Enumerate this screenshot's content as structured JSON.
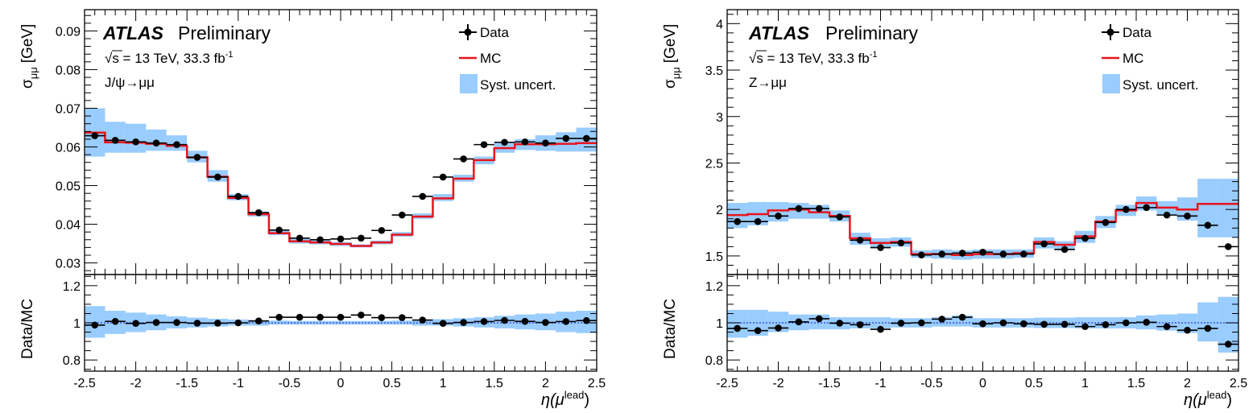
{
  "chart_data": [
    {
      "type": "line",
      "experiment": "ATLAS",
      "status": "Preliminary",
      "energy_text": "√s = 13 TeV, 33.3 fb",
      "lumi_sup": "-1",
      "process": "J/ψ→μμ",
      "ylabel": "σ",
      "ylabel_sub": "μμ",
      "ylabel_unit": "[GeV]",
      "ratio_ylabel": "Data/MC",
      "xlabel": "η(μ",
      "xlabel_sup": "lead",
      "xlabel_close": ")",
      "legend": {
        "data": "Data",
        "mc": "MC",
        "syst": "Syst. uncert."
      },
      "colors": {
        "mc": "#e8141c",
        "syst": "#99ccff",
        "data": "#000000"
      },
      "xlim": [
        -2.5,
        2.5
      ],
      "ylim": [
        0.027,
        0.0955
      ],
      "ratio_ylim": [
        0.74,
        1.26
      ],
      "x_ticks": [
        "-2.5",
        "-2",
        "-1.5",
        "-1",
        "-0.5",
        "0",
        "0.5",
        "1",
        "1.5",
        "2",
        "2.5"
      ],
      "y_ticks": [
        "0.03",
        "0.04",
        "0.05",
        "0.06",
        "0.07",
        "0.08",
        "0.09"
      ],
      "ratio_ticks": [
        "0.8",
        "1",
        "1.2"
      ],
      "bin_edges": [
        -2.5,
        -2.3,
        -2.1,
        -1.9,
        -1.7,
        -1.5,
        -1.3,
        -1.1,
        -0.9,
        -0.7,
        -0.5,
        -0.3,
        -0.1,
        0.1,
        0.3,
        0.5,
        0.7,
        0.9,
        1.1,
        1.3,
        1.5,
        1.7,
        1.9,
        2.1,
        2.3,
        2.5
      ],
      "series": [
        {
          "name": "Data",
          "values": [
            0.0629,
            0.0617,
            0.0613,
            0.061,
            0.0606,
            0.0573,
            0.0522,
            0.0472,
            0.043,
            0.0385,
            0.0364,
            0.036,
            0.0362,
            0.0364,
            0.0384,
            0.0424,
            0.0472,
            0.0522,
            0.0569,
            0.0606,
            0.0612,
            0.0613,
            0.061,
            0.0622,
            0.0622
          ]
        },
        {
          "name": "MC",
          "values": [
            0.0637,
            0.0612,
            0.0611,
            0.0608,
            0.0603,
            0.0573,
            0.0523,
            0.0468,
            0.0426,
            0.0377,
            0.0356,
            0.0353,
            0.0349,
            0.0344,
            0.0353,
            0.0373,
            0.042,
            0.0467,
            0.0518,
            0.0566,
            0.0597,
            0.0607,
            0.0607,
            0.0608,
            0.061
          ]
        }
      ],
      "syst_low": [
        0.0575,
        0.0585,
        0.0585,
        0.059,
        0.059,
        0.056,
        0.051,
        0.0462,
        0.042,
        0.0372,
        0.035,
        0.0348,
        0.0344,
        0.034,
        0.0348,
        0.0368,
        0.0414,
        0.046,
        0.051,
        0.0555,
        0.0585,
        0.0592,
        0.059,
        0.0588,
        0.0588
      ],
      "syst_high": [
        0.07,
        0.0665,
        0.066,
        0.0645,
        0.063,
        0.059,
        0.054,
        0.0478,
        0.0433,
        0.0383,
        0.0362,
        0.0358,
        0.0354,
        0.0348,
        0.0358,
        0.038,
        0.0428,
        0.0478,
        0.0528,
        0.0575,
        0.0612,
        0.062,
        0.063,
        0.0638,
        0.065
      ],
      "ratio_values": [
        0.988,
        1.008,
        0.997,
        1.002,
        1.002,
        0.998,
        0.998,
        1.0,
        1.01,
        1.03,
        1.03,
        1.03,
        1.03,
        1.042,
        1.028,
        1.028,
        1.015,
        0.997,
        1.002,
        1.007,
        1.013,
        1.008,
        1.002,
        1.007,
        1.012
      ],
      "ratio_syst_low": [
        0.92,
        0.94,
        0.95,
        0.96,
        0.97,
        0.975,
        0.98,
        0.985,
        0.985,
        0.99,
        0.99,
        0.99,
        0.99,
        0.99,
        0.99,
        0.99,
        0.985,
        0.985,
        0.98,
        0.975,
        0.97,
        0.965,
        0.96,
        0.95,
        0.945
      ],
      "ratio_syst_high": [
        1.09,
        1.065,
        1.055,
        1.045,
        1.035,
        1.028,
        1.022,
        1.018,
        1.015,
        1.012,
        1.01,
        1.01,
        1.01,
        1.01,
        1.01,
        1.012,
        1.015,
        1.02,
        1.025,
        1.03,
        1.038,
        1.045,
        1.05,
        1.06,
        1.065
      ]
    },
    {
      "type": "line",
      "experiment": "ATLAS",
      "status": "Preliminary",
      "energy_text": "√s = 13 TeV, 33.3 fb",
      "lumi_sup": "-1",
      "process": "Z→μμ",
      "ylabel": "σ",
      "ylabel_sub": "μμ",
      "ylabel_unit": "[GeV]",
      "ratio_ylabel": "Data/MC",
      "xlabel": "η(μ",
      "xlabel_sup": "lead",
      "xlabel_close": ")",
      "legend": {
        "data": "Data",
        "mc": "MC",
        "syst": "Syst. uncert."
      },
      "colors": {
        "mc": "#e8141c",
        "syst": "#99ccff",
        "data": "#000000"
      },
      "xlim": [
        -2.5,
        2.5
      ],
      "ylim": [
        1.3,
        4.15
      ],
      "ratio_ylim": [
        0.74,
        1.26
      ],
      "x_ticks": [
        "-2.5",
        "-2",
        "-1.5",
        "-1",
        "-0.5",
        "0",
        "0.5",
        "1",
        "1.5",
        "2",
        "2.5"
      ],
      "y_ticks": [
        "1.5",
        "2",
        "2.5",
        "3",
        "3.5",
        "4"
      ],
      "ratio_ticks": [
        "0.8",
        "1",
        "1.2"
      ],
      "bin_edges": [
        -2.5,
        -2.3,
        -2.1,
        -1.9,
        -1.7,
        -1.5,
        -1.3,
        -1.1,
        -0.9,
        -0.7,
        -0.5,
        -0.3,
        -0.1,
        0.1,
        0.3,
        0.5,
        0.7,
        0.9,
        1.1,
        1.3,
        1.5,
        1.7,
        1.9,
        2.1,
        2.3,
        2.5
      ],
      "series": [
        {
          "name": "Data",
          "values": [
            1.87,
            1.87,
            1.93,
            2.01,
            2.01,
            1.92,
            1.67,
            1.59,
            1.64,
            1.51,
            1.52,
            1.53,
            1.54,
            1.52,
            1.52,
            1.63,
            1.57,
            1.69,
            1.86,
            2.0,
            2.02,
            1.94,
            1.93,
            1.83,
            1.6
          ]
        },
        {
          "name": "MC",
          "values": [
            1.94,
            1.95,
            1.99,
            2.0,
            1.97,
            1.93,
            1.69,
            1.64,
            1.65,
            1.52,
            1.52,
            1.51,
            1.52,
            1.52,
            1.53,
            1.65,
            1.62,
            1.71,
            1.87,
            1.99,
            2.07,
            2.02,
            2.0,
            2.06,
            2.06
          ]
        }
      ],
      "syst_low": [
        1.8,
        1.83,
        1.87,
        1.9,
        1.9,
        1.87,
        1.62,
        1.59,
        1.6,
        1.48,
        1.47,
        1.46,
        1.47,
        1.47,
        1.48,
        1.58,
        1.56,
        1.64,
        1.8,
        1.93,
        1.99,
        1.94,
        1.88,
        1.7,
        1.7
      ],
      "syst_high": [
        2.07,
        2.08,
        2.08,
        2.07,
        2.05,
        1.99,
        1.75,
        1.69,
        1.7,
        1.56,
        1.57,
        1.56,
        1.57,
        1.57,
        1.57,
        1.7,
        1.66,
        1.77,
        1.93,
        2.05,
        2.14,
        2.09,
        2.13,
        2.33,
        2.33
      ],
      "ratio_values": [
        0.97,
        0.958,
        0.972,
        1.005,
        1.022,
        0.998,
        0.99,
        0.965,
        0.998,
        1.0,
        1.02,
        1.03,
        0.995,
        1.0,
        0.995,
        0.992,
        0.992,
        0.98,
        0.99,
        1.0,
        1.003,
        0.98,
        0.96,
        0.97,
        0.885
      ],
      "ratio_syst_low": [
        0.92,
        0.93,
        0.95,
        0.96,
        0.965,
        0.965,
        0.97,
        0.97,
        0.975,
        0.975,
        0.98,
        0.98,
        0.975,
        0.975,
        0.975,
        0.972,
        0.972,
        0.97,
        0.97,
        0.97,
        0.965,
        0.958,
        0.945,
        0.9,
        0.84
      ],
      "ratio_syst_high": [
        1.07,
        1.07,
        1.06,
        1.045,
        1.045,
        1.03,
        1.03,
        1.03,
        1.025,
        1.025,
        1.03,
        1.04,
        1.025,
        1.025,
        1.025,
        1.028,
        1.028,
        1.03,
        1.03,
        1.03,
        1.04,
        1.045,
        1.05,
        1.11,
        1.14
      ]
    }
  ]
}
